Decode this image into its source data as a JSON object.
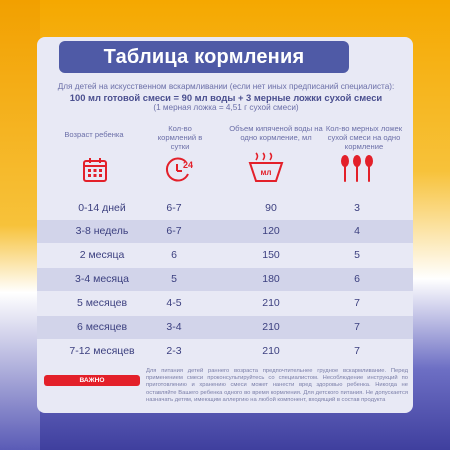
{
  "title": "Таблица кормления",
  "intro": {
    "line1": "Для детей на искусственном вскармливании (если нет иных предписаний специалиста):",
    "formula": "100 мл готовой смеси = 90 мл воды + 3 мерные ложки сухой смеси",
    "note": "(1 мерная ложка = 4,51 г сухой смеси)"
  },
  "columns": {
    "age": "Возраст ребенка",
    "feedings": "Кол-во кормлений в сутки",
    "water": "Объем кипяченой воды на одно кормление, мл",
    "spoons": "Кол-во мерных ложек сухой смеси на одно кормление"
  },
  "icons": {
    "age": "calendar-icon",
    "feedings": "clock-24-icon",
    "water": "bowl-ml-icon",
    "spoons": "three-spoons-icon",
    "clock_label": "24",
    "bowl_label": "мл"
  },
  "rows": [
    {
      "age": "0-14 дней",
      "feedings": "6-7",
      "water": "90",
      "spoons": "3"
    },
    {
      "age": "3-8 недель",
      "feedings": "6-7",
      "water": "120",
      "spoons": "4"
    },
    {
      "age": "2 месяца",
      "feedings": "6",
      "water": "150",
      "spoons": "5"
    },
    {
      "age": "3-4 месяца",
      "feedings": "5",
      "water": "180",
      "spoons": "6"
    },
    {
      "age": "5 месяцев",
      "feedings": "4-5",
      "water": "210",
      "spoons": "7"
    },
    {
      "age": "6 месяцев",
      "feedings": "3-4",
      "water": "210",
      "spoons": "7"
    },
    {
      "age": "7-12 месяцев",
      "feedings": "2-3",
      "water": "210",
      "spoons": "7"
    }
  ],
  "important": {
    "label": "ВАЖНО",
    "text": "Для питания детей раннего возраста предпочтительнее грудное вскармливание. Перед применением смеси проконсультируйтесь со специалистом. Несоблюдение инструкций по приготовлению и хранению смеси может нанести вред здоровью ребенка. Никогда не оставляйте Вашего ребенка одного во время кормления. Для детского питания. Не допускается назначать детям, имеющим аллергию на любой компонент, входящий в состав продукта"
  },
  "colors": {
    "title_bg": "#4f5aa6",
    "icon_red": "#e3202a",
    "text_blue": "#3b3f7f",
    "row_alt": "#d2d4ea"
  }
}
